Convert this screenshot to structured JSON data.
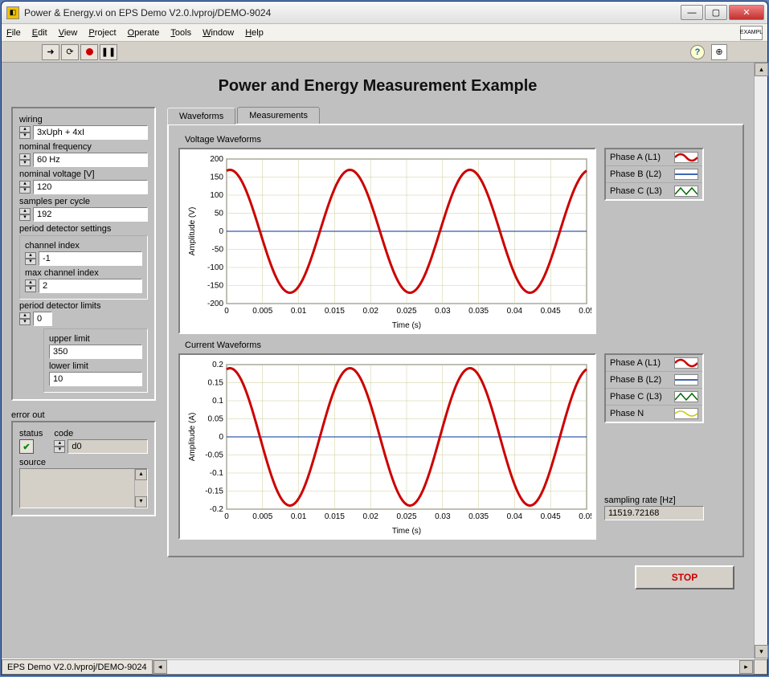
{
  "window": {
    "title": "Power & Energy.vi on EPS Demo V2.0.lvproj/DEMO-9024"
  },
  "menu": [
    "File",
    "Edit",
    "View",
    "Project",
    "Operate",
    "Tools",
    "Window",
    "Help"
  ],
  "page_title": "Power and Energy Measurement Example",
  "settings": {
    "wiring": {
      "label": "wiring",
      "value": "3xUph + 4xI"
    },
    "nominal_frequency": {
      "label": "nominal frequency",
      "value": "60 Hz"
    },
    "nominal_voltage": {
      "label": "nominal voltage [V]",
      "value": "120"
    },
    "samples_per_cycle": {
      "label": "samples per cycle",
      "value": "192"
    },
    "period_detector_settings": {
      "label": "period detector settings",
      "channel_index": {
        "label": "channel index",
        "value": "-1"
      },
      "max_channel_index": {
        "label": "max channel index",
        "value": "2"
      }
    },
    "period_detector_limits": {
      "label": "period detector limits",
      "index": "0",
      "upper": {
        "label": "upper limit",
        "value": "350"
      },
      "lower": {
        "label": "lower limit",
        "value": "10"
      }
    }
  },
  "error_out": {
    "label": "error out",
    "status_label": "status",
    "code_label": "code",
    "code_value": "d0",
    "source_label": "source",
    "source_value": ""
  },
  "tabs": {
    "waveforms": "Waveforms",
    "measurements": "Measurements",
    "active": "waveforms"
  },
  "voltage_chart": {
    "title": "Voltage Waveforms",
    "ylabel": "Amplitude (V)",
    "xlabel": "Time (s)",
    "xlim": [
      0,
      0.05
    ],
    "xticks": [
      0,
      0.005,
      0.01,
      0.015,
      0.02,
      0.025,
      0.03,
      0.035,
      0.04,
      0.045,
      0.05
    ],
    "ylim": [
      -200,
      200
    ],
    "yticks": [
      -200,
      -150,
      -100,
      -50,
      0,
      50,
      100,
      150,
      200
    ],
    "series_main": {
      "amplitude": 170,
      "freq": 60,
      "phase_deg": 80,
      "color": "#cc0000",
      "width": 3
    },
    "series_line": {
      "value": 0,
      "color": "#003399",
      "width": 1
    },
    "grid_color": "#cccc99",
    "bg": "#ffffff",
    "legend": [
      {
        "label": "Phase A (L1)",
        "color": "#cc0000",
        "style": "wave"
      },
      {
        "label": "Phase B (L2)",
        "color": "#003399",
        "style": "line"
      },
      {
        "label": "Phase C (L3)",
        "color": "#006600",
        "style": "tri"
      }
    ]
  },
  "current_chart": {
    "title": "Current Waveforms",
    "ylabel": "Amplitude (A)",
    "xlabel": "Time (s)",
    "xlim": [
      0,
      0.05
    ],
    "xticks": [
      0,
      0.005,
      0.01,
      0.015,
      0.02,
      0.025,
      0.03,
      0.035,
      0.04,
      0.045,
      0.05
    ],
    "ylim": [
      -0.2,
      0.2
    ],
    "yticks": [
      -0.2,
      -0.15,
      -0.1,
      -0.05,
      0,
      0.05,
      0.1,
      0.15,
      0.2
    ],
    "series_main": {
      "amplitude": 0.19,
      "freq": 60,
      "phase_deg": 80,
      "color": "#cc0000",
      "width": 3
    },
    "series_line": {
      "value": 0,
      "color": "#003399",
      "width": 1
    },
    "grid_color": "#cccc99",
    "bg": "#ffffff",
    "legend": [
      {
        "label": "Phase A (L1)",
        "color": "#cc0000",
        "style": "wave"
      },
      {
        "label": "Phase B (L2)",
        "color": "#003399",
        "style": "line"
      },
      {
        "label": "Phase C (L3)",
        "color": "#006600",
        "style": "tri"
      },
      {
        "label": "Phase N",
        "color": "#cccc00",
        "style": "wave2"
      }
    ]
  },
  "sampling_rate": {
    "label": "sampling rate [Hz]",
    "value": "11519.72168"
  },
  "stop_label": "STOP",
  "status_text": "EPS Demo V2.0.lvproj/DEMO-9024",
  "colors": {
    "panel": "#c0c0c0"
  }
}
